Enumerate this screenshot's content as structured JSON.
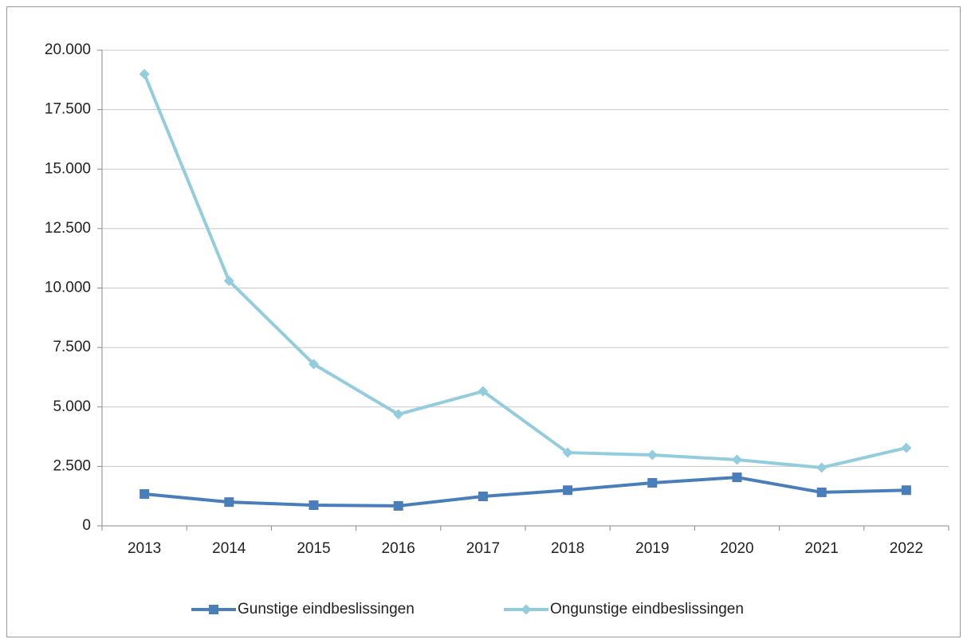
{
  "chart_data": {
    "type": "line",
    "categories": [
      "2013",
      "2014",
      "2015",
      "2016",
      "2017",
      "2018",
      "2019",
      "2020",
      "2021",
      "2022"
    ],
    "series": [
      {
        "name": "Gunstige eindbeslissingen",
        "color": "#4a7ebb",
        "marker": "square",
        "values": [
          1340,
          1000,
          870,
          840,
          1240,
          1500,
          1810,
          2040,
          1410,
          1500
        ]
      },
      {
        "name": "Ongunstige eindbeslissingen",
        "color": "#93cddd",
        "marker": "diamond",
        "values": [
          19000,
          10300,
          6800,
          4690,
          5660,
          3080,
          2980,
          2780,
          2450,
          3280
        ]
      }
    ],
    "ylim": [
      0,
      20000
    ],
    "yticks": [
      0,
      {
        "value": 2500,
        "label": "2.500"
      },
      {
        "value": 5000,
        "label": "5.000"
      },
      {
        "value": 7500,
        "label": "7.500"
      },
      {
        "value": 10000,
        "label": "10.000"
      },
      {
        "value": 12500,
        "label": "12.500"
      },
      {
        "value": 15000,
        "label": "15.000"
      },
      {
        "value": 17500,
        "label": "17.500"
      },
      {
        "value": 20000,
        "label": "20.000"
      }
    ],
    "grid": true,
    "legend": "bottom"
  }
}
